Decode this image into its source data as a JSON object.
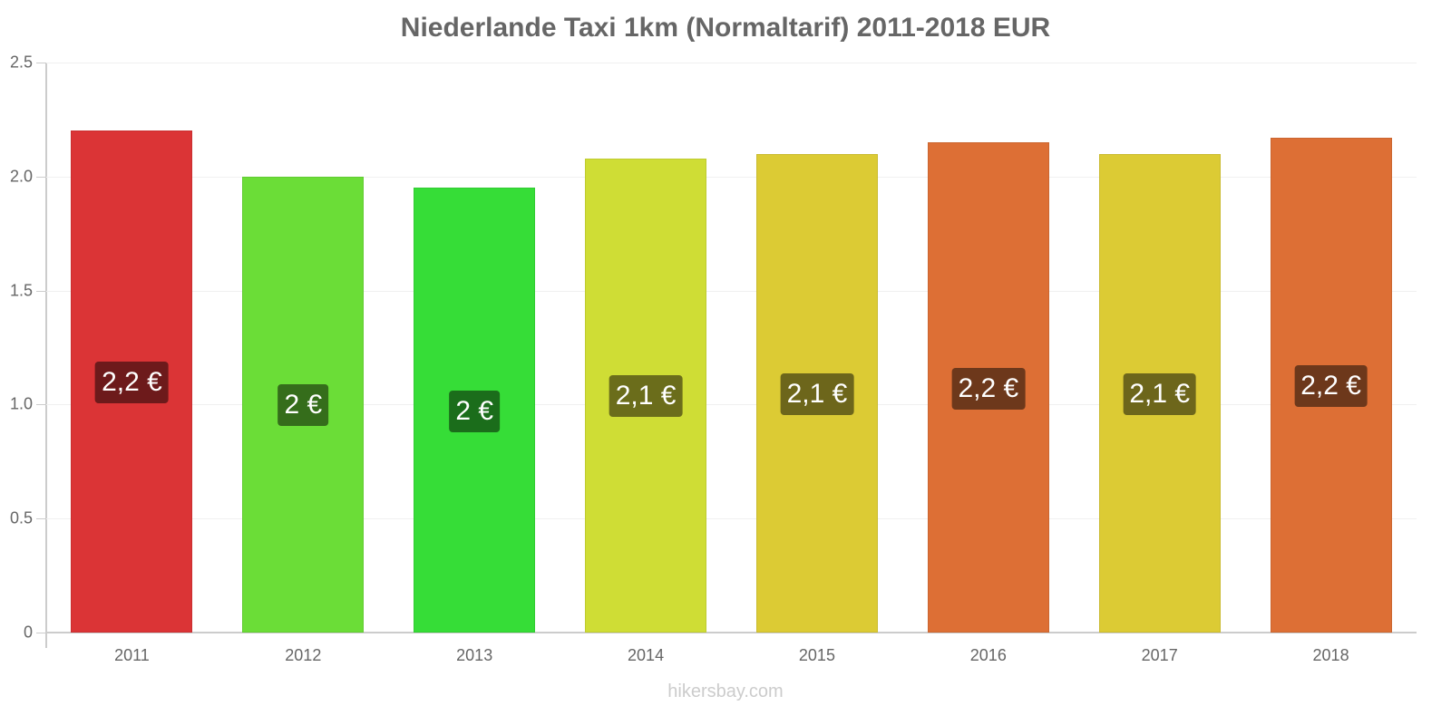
{
  "chart_data": {
    "type": "bar",
    "title": "Niederlande Taxi 1km (Normaltarif) 2011-2018 EUR",
    "xlabel": "",
    "ylabel": "",
    "ylim": [
      0,
      2.5
    ],
    "yticks": [
      "0",
      "0.5",
      "1.0",
      "1.5",
      "2.0",
      "2.5"
    ],
    "grid": true,
    "legend": "none",
    "categories": [
      "2011",
      "2012",
      "2013",
      "2014",
      "2015",
      "2016",
      "2017",
      "2018"
    ],
    "values": [
      2.2,
      2.0,
      1.95,
      2.08,
      2.1,
      2.15,
      2.1,
      2.17
    ],
    "data_labels": [
      "2,2 €",
      "2 €",
      "2 €",
      "2,1 €",
      "2,1 €",
      "2,2 €",
      "2,1 €",
      "2,2 €"
    ],
    "bar_colors": [
      "#db3436",
      "#6bdd37",
      "#36dd37",
      "#cfdd35",
      "#dccb34",
      "#dd6f35",
      "#dccb34",
      "#dd6f35"
    ],
    "label_colors": [
      "#6d1a1b",
      "#356d1b",
      "#1b6d1b",
      "#6b6d1b",
      "#6d661b",
      "#6d381b",
      "#6d661b",
      "#6d381b"
    ]
  },
  "footer": {
    "credit": "hikersbay.com"
  }
}
